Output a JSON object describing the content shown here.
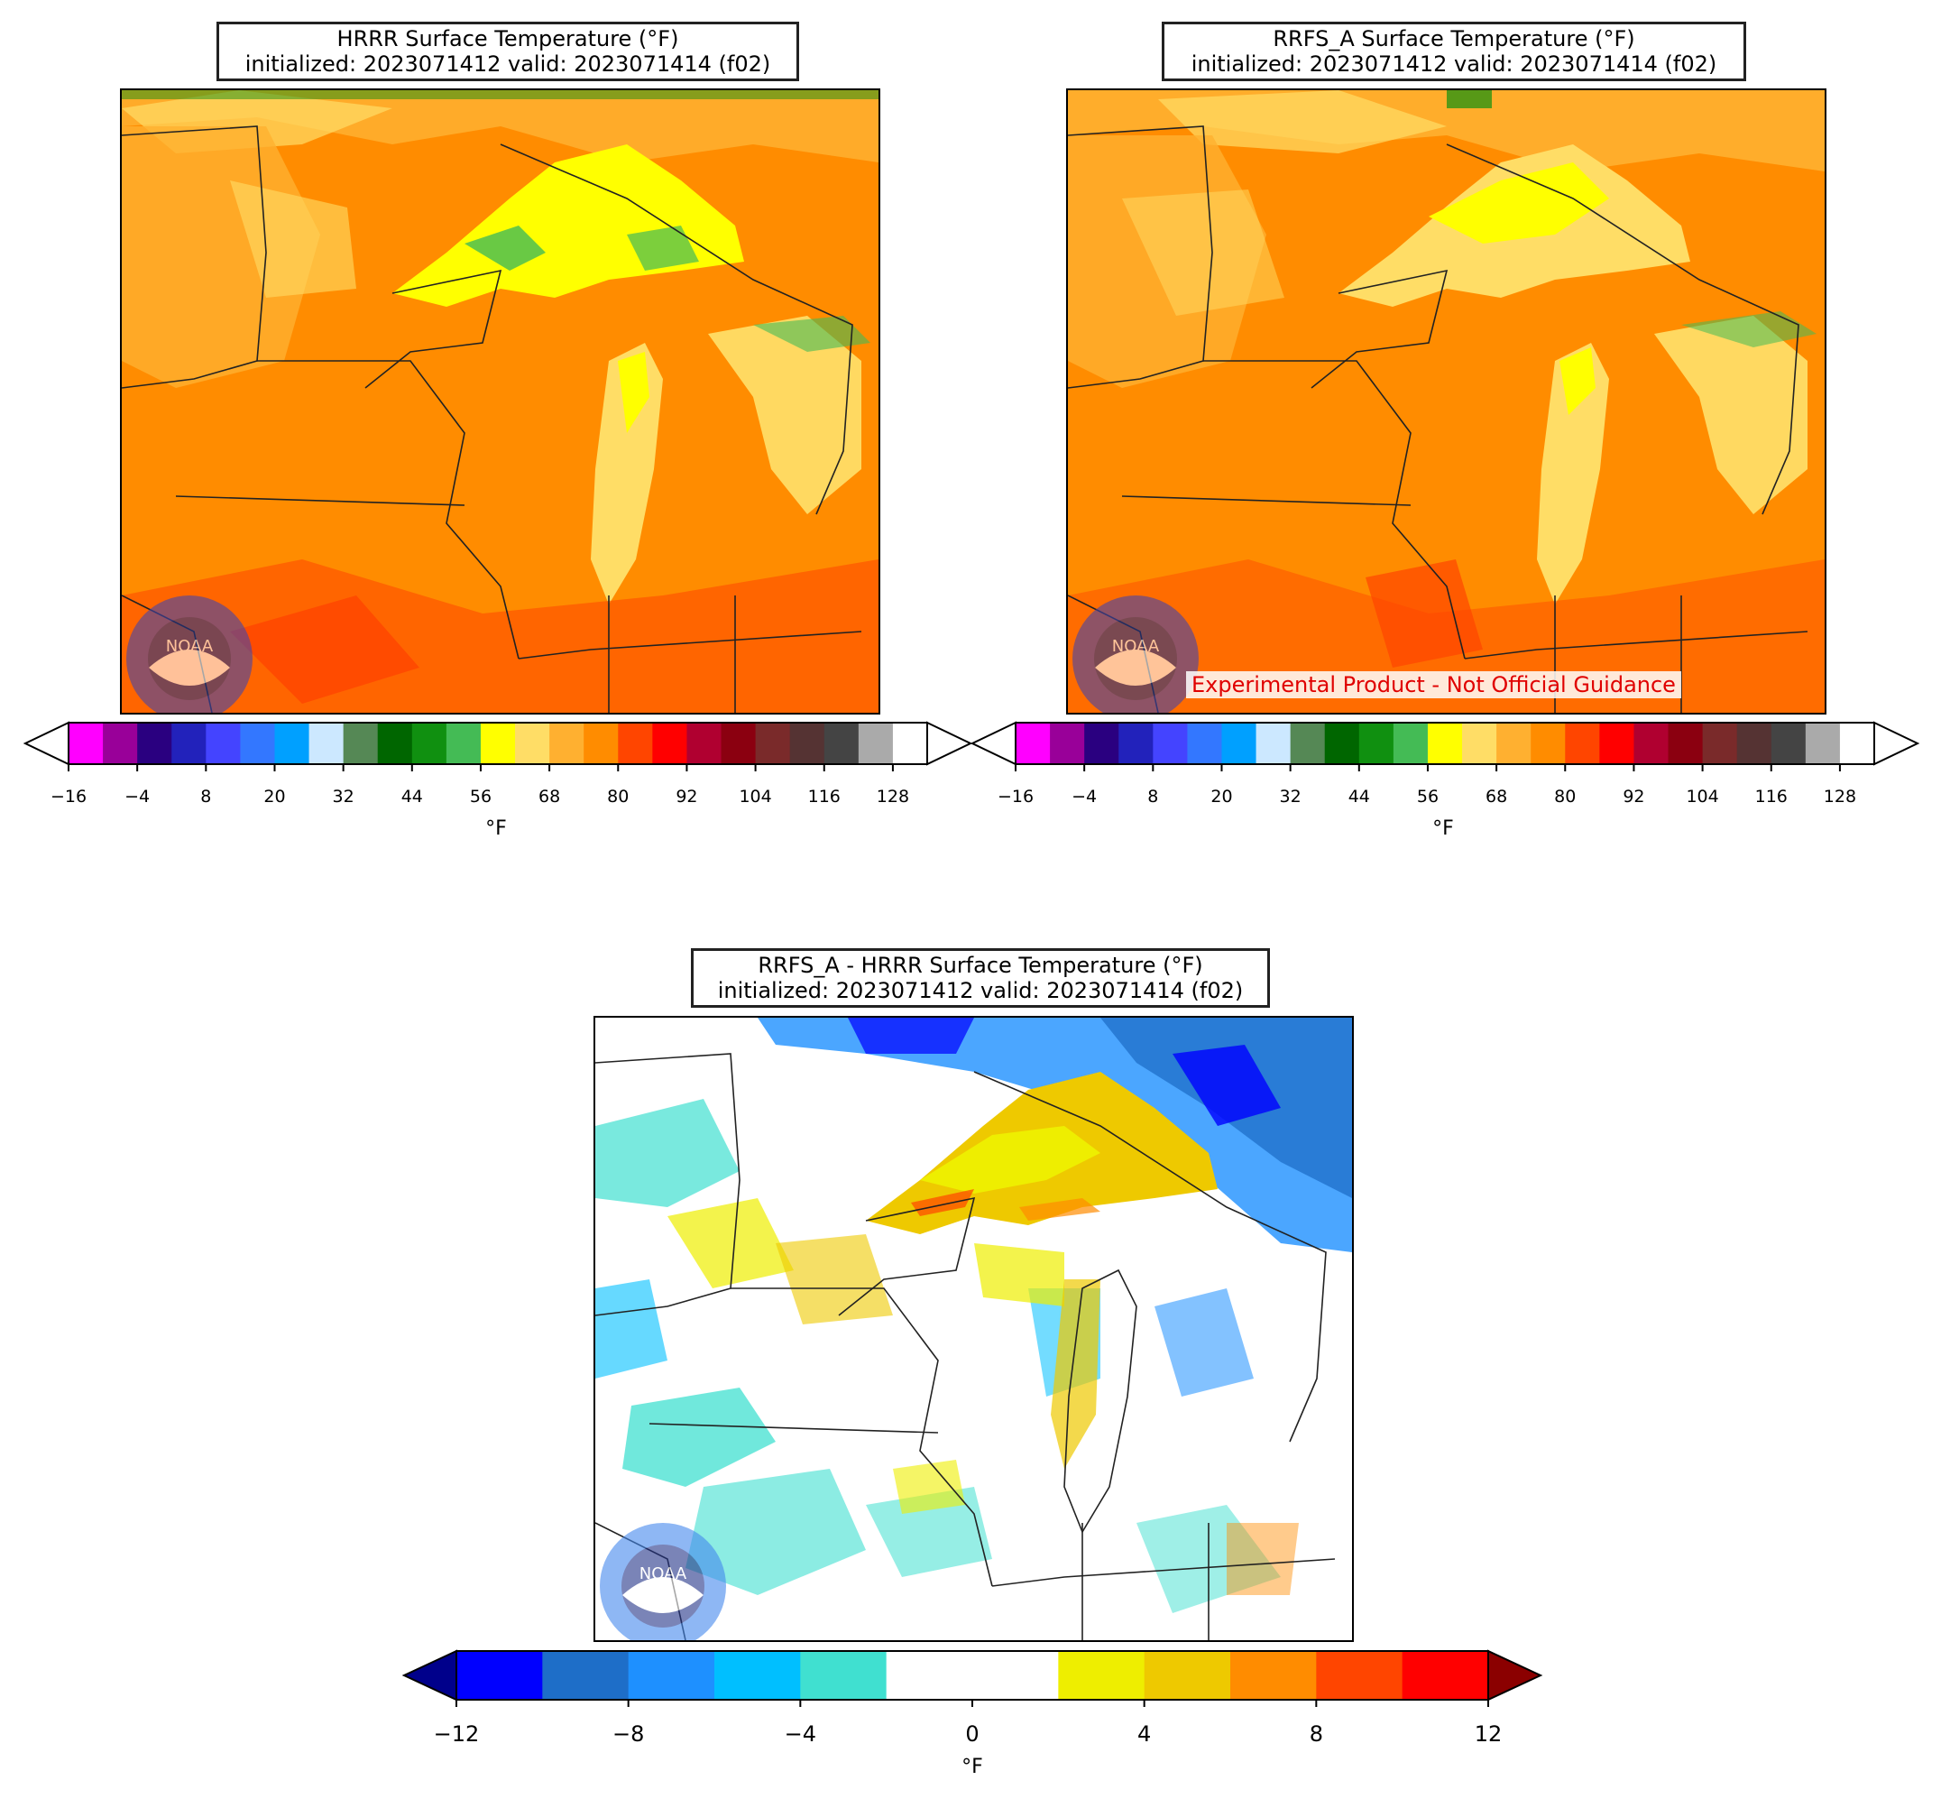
{
  "panels": [
    {
      "title_line1": "HRRR Surface Temperature (°F)",
      "title_line2": "initialized: 2023071412 valid: 2023071414 (f02)",
      "colorbar_unit": "°F",
      "colorbar_ticks": [
        "−16",
        "−4",
        "8",
        "20",
        "32",
        "44",
        "56",
        "68",
        "80",
        "92",
        "104",
        "116",
        "128"
      ],
      "logo_text": "NOAA",
      "dominant_color": "#ff8c00"
    },
    {
      "title_line1": "RRFS_A Surface Temperature (°F)",
      "title_line2": "initialized: 2023071412 valid: 2023071414 (f02)",
      "colorbar_unit": "°F",
      "colorbar_ticks": [
        "−16",
        "−4",
        "8",
        "20",
        "32",
        "44",
        "56",
        "68",
        "80",
        "92",
        "104",
        "116",
        "128"
      ],
      "notice": "Experimental Product - Not Official Guidance",
      "logo_text": "NOAA",
      "dominant_color": "#ff8c00"
    },
    {
      "title_line1": "RRFS_A - HRRR Surface Temperature (°F)",
      "title_line2": "initialized: 2023071412 valid: 2023071414 (f02)",
      "colorbar_unit": "°F",
      "colorbar_ticks": [
        "−12",
        "−8",
        "−4",
        "0",
        "4",
        "8",
        "12"
      ],
      "logo_text": "NOAA",
      "dominant_color": "#ffffff"
    }
  ],
  "temp_colors": [
    "#ff00ff",
    "#990099",
    "#2a0080",
    "#2222bb",
    "#4444ff",
    "#3377ff",
    "#00a0ff",
    "#cce8ff",
    "#558855",
    "#006600",
    "#109010",
    "#44bb55",
    "#ffff00",
    "#ffdd66",
    "#ffb030",
    "#ff8c00",
    "#ff4500",
    "#ff0000",
    "#b00030",
    "#8b0010",
    "#7a2a2a",
    "#553333",
    "#444444",
    "#aaaaaa",
    "#ffffff"
  ],
  "diff_colors": [
    "#00008b",
    "#0000ff",
    "#1e6ec8",
    "#1e90ff",
    "#00bfff",
    "#40e0d0",
    "#ffffff",
    "#ffffff",
    "#eeee00",
    "#eec900",
    "#ff8c00",
    "#ff4500",
    "#ff0000",
    "#8b0000"
  ]
}
